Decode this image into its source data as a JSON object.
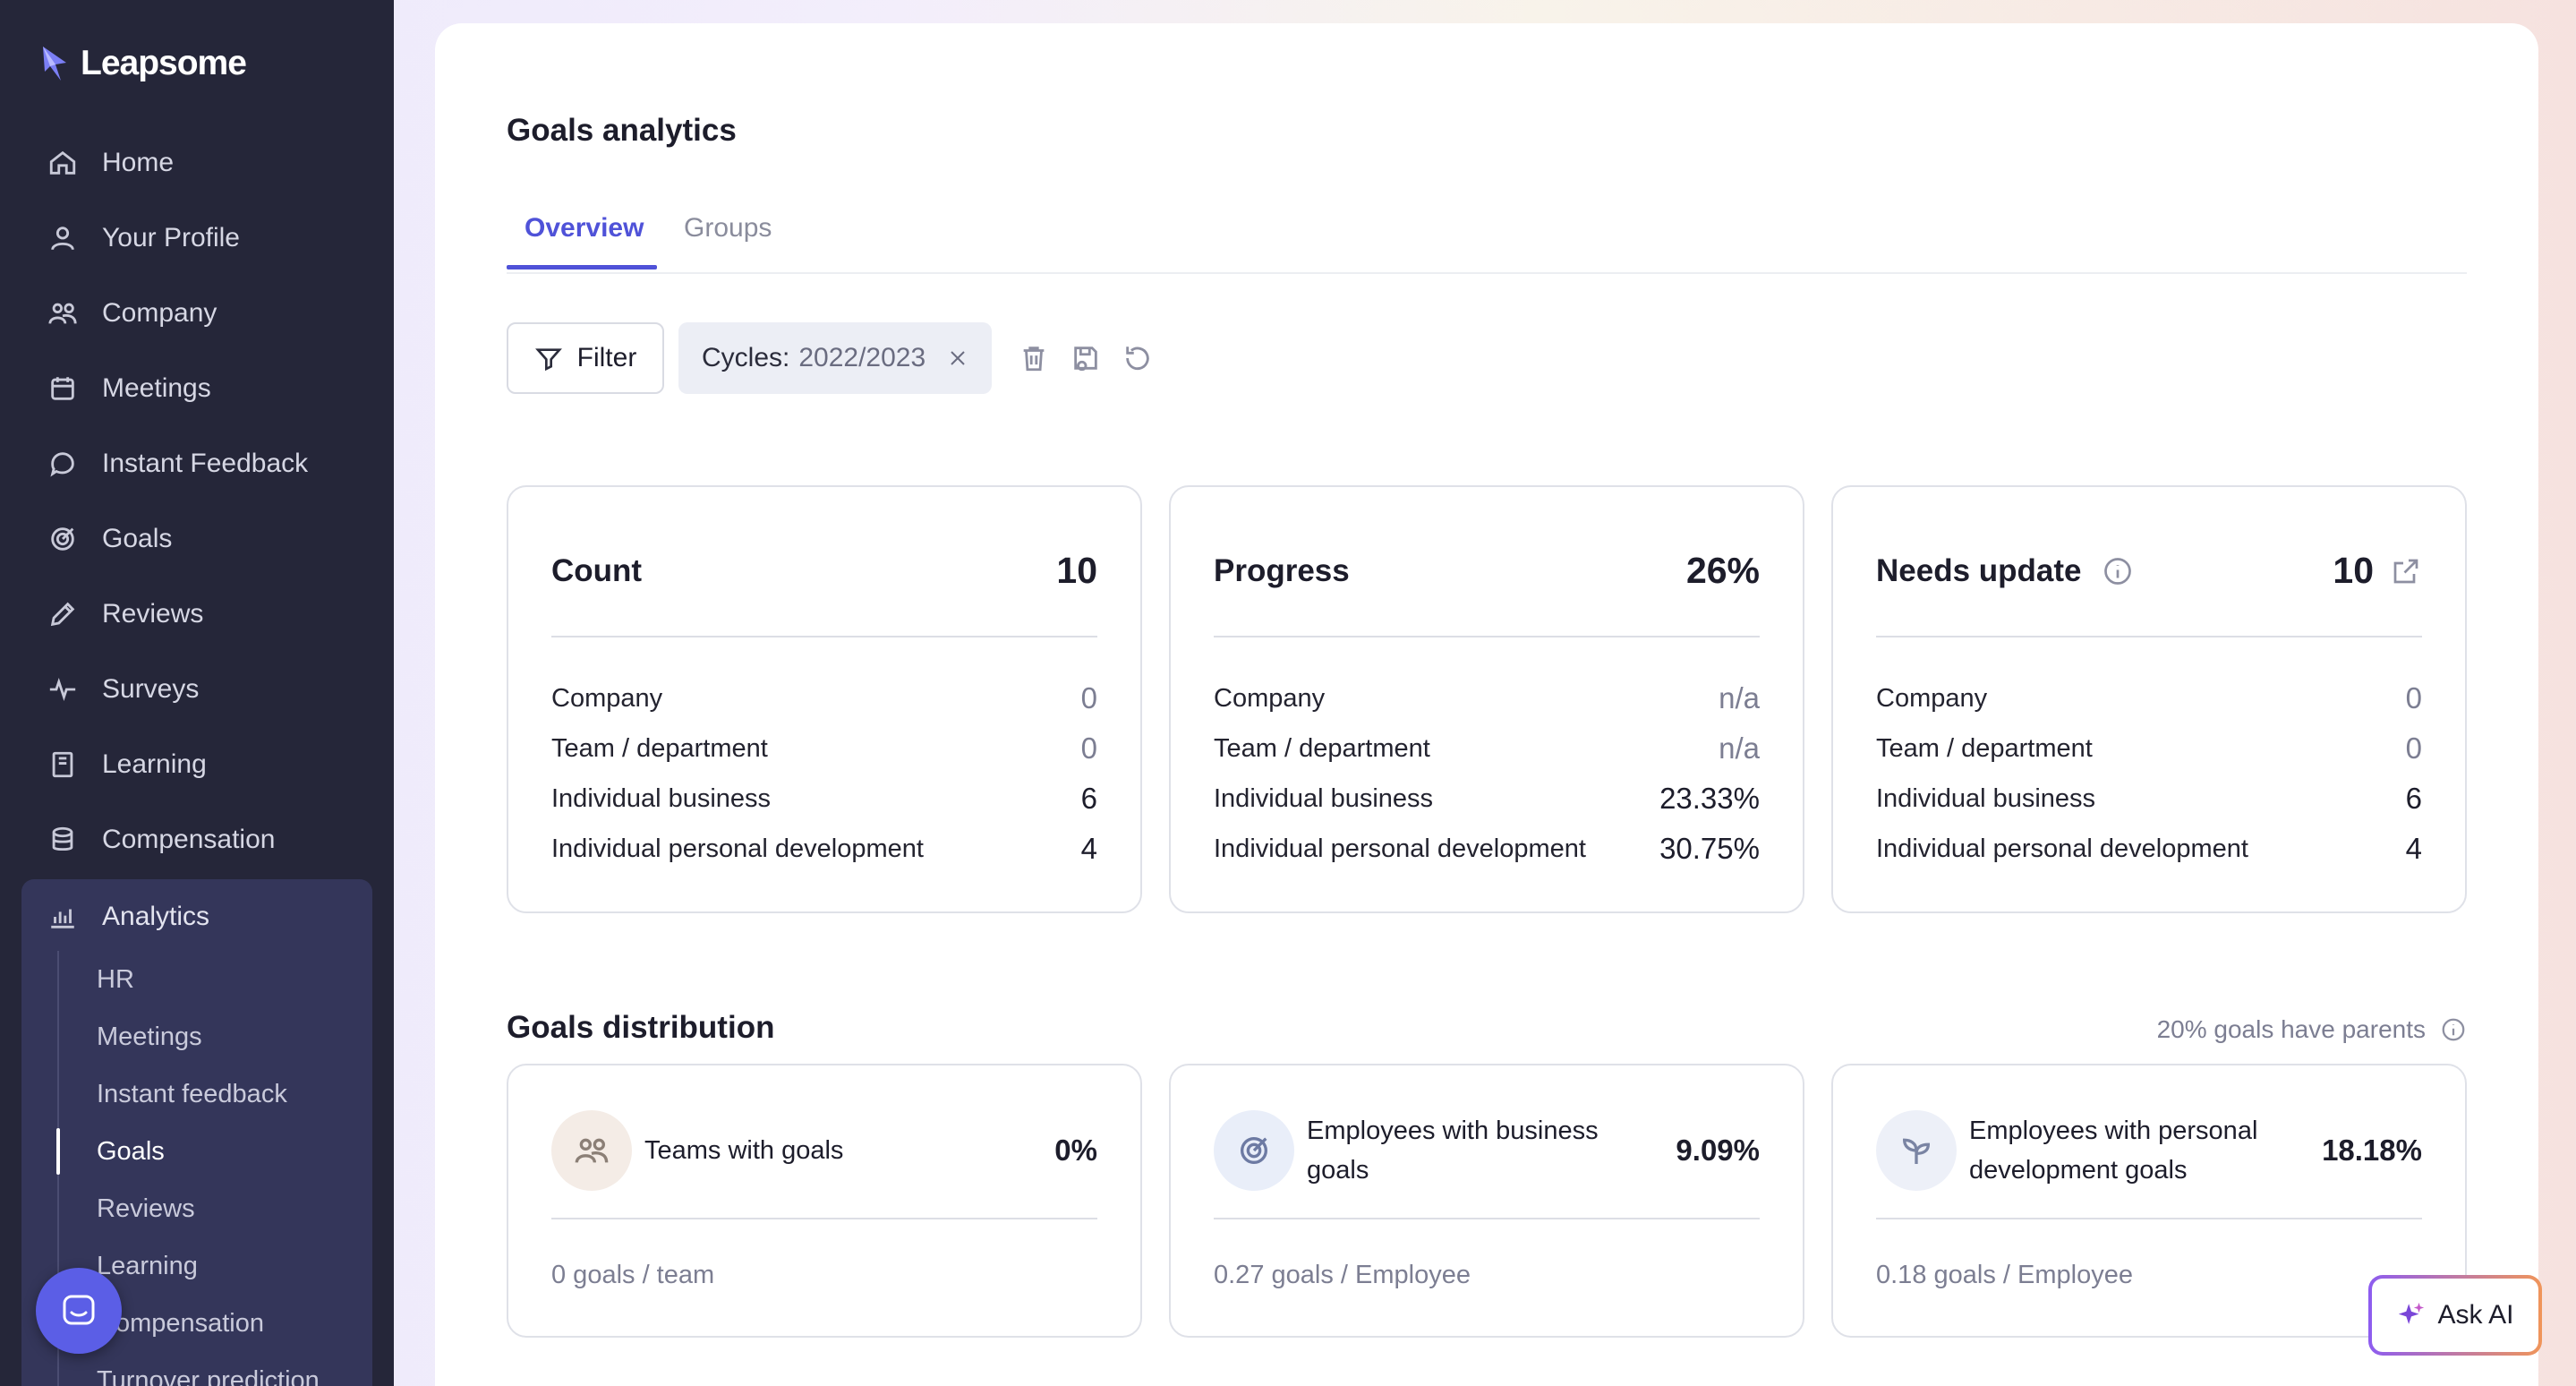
{
  "app": {
    "brand": "Leapsome"
  },
  "sidebar": {
    "items": [
      {
        "label": "Home",
        "icon": "home-icon"
      },
      {
        "label": "Your Profile",
        "icon": "user-icon"
      },
      {
        "label": "Company",
        "icon": "people-icon"
      },
      {
        "label": "Meetings",
        "icon": "calendar-icon"
      },
      {
        "label": "Instant Feedback",
        "icon": "chat-icon"
      },
      {
        "label": "Goals",
        "icon": "target-icon"
      },
      {
        "label": "Reviews",
        "icon": "pencil-icon"
      },
      {
        "label": "Surveys",
        "icon": "pulse-icon"
      },
      {
        "label": "Learning",
        "icon": "book-icon"
      },
      {
        "label": "Compensation",
        "icon": "coins-icon"
      }
    ],
    "analytics": {
      "label": "Analytics",
      "icon": "chart-icon",
      "subitems": [
        "HR",
        "Meetings",
        "Instant feedback",
        "Goals",
        "Reviews",
        "Learning",
        "Compensation",
        "Turnover prediction"
      ],
      "active": "Goals"
    }
  },
  "page": {
    "title": "Goals analytics",
    "tabs": [
      {
        "label": "Overview",
        "active": true
      },
      {
        "label": "Groups",
        "active": false
      }
    ]
  },
  "toolbar": {
    "filter_label": "Filter",
    "chip_label": "Cycles:",
    "chip_value": "2022/2023"
  },
  "stats": [
    {
      "title": "Count",
      "value": "10",
      "rows": [
        {
          "label": "Company",
          "value": "0"
        },
        {
          "label": "Team / department",
          "value": "0"
        },
        {
          "label": "Individual business",
          "value": "6"
        },
        {
          "label": "Individual personal development",
          "value": "4"
        }
      ]
    },
    {
      "title": "Progress",
      "value": "26%",
      "rows": [
        {
          "label": "Company",
          "value": "n/a"
        },
        {
          "label": "Team / department",
          "value": "n/a"
        },
        {
          "label": "Individual business",
          "value": "23.33%"
        },
        {
          "label": "Individual personal development",
          "value": "30.75%"
        }
      ]
    },
    {
      "title": "Needs update",
      "value": "10",
      "rows": [
        {
          "label": "Company",
          "value": "0"
        },
        {
          "label": "Team / department",
          "value": "0"
        },
        {
          "label": "Individual business",
          "value": "6"
        },
        {
          "label": "Individual personal development",
          "value": "4"
        }
      ]
    }
  ],
  "distribution": {
    "title": "Goals distribution",
    "note": "20% goals have parents",
    "cards": [
      {
        "label": "Teams with goals",
        "value": "0%",
        "footer": "0 goals / team",
        "icon": "people-icon"
      },
      {
        "label": "Employees with business goals",
        "value": "9.09%",
        "footer": "0.27 goals / Employee",
        "icon": "target-icon"
      },
      {
        "label": "Employees with personal development goals",
        "value": "18.18%",
        "footer": "0.18 goals / Employee",
        "icon": "sprout-icon"
      }
    ]
  },
  "ask_ai": {
    "label": "Ask AI"
  },
  "colors": {
    "accent": "#4f52d8",
    "sidebar_bg": "#252639",
    "analytics_bg": "#34365a"
  }
}
